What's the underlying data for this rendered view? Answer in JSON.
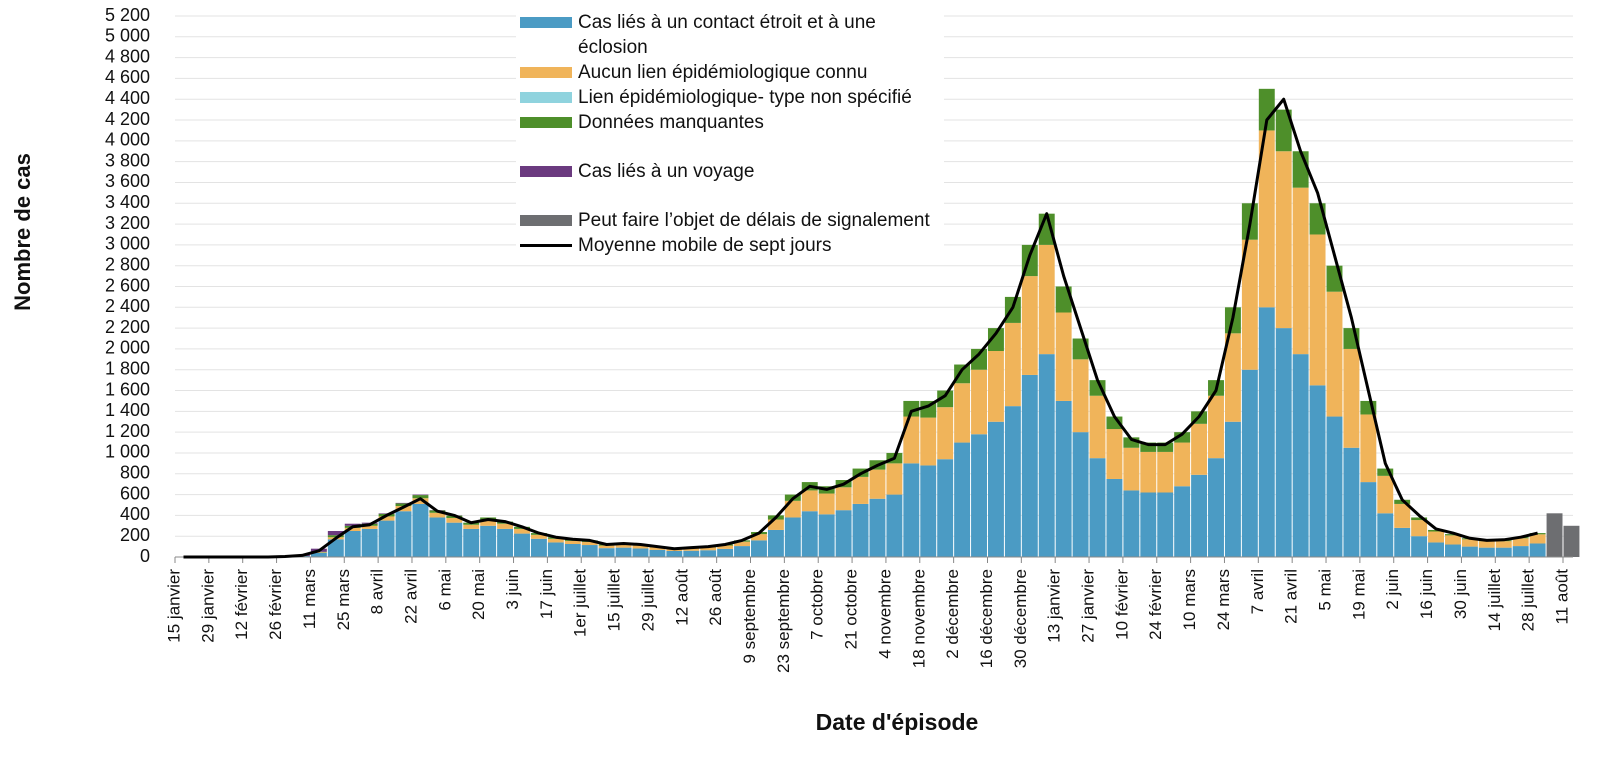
{
  "chart_data": {
    "type": "bar",
    "stacked": true,
    "y_label": "Nombre de cas",
    "x_label": "Date d'épisode",
    "categories": [
      "15 janvier",
      null,
      "29 janvier",
      null,
      "12 février",
      null,
      "26 février",
      null,
      "11 mars",
      null,
      "25 mars",
      null,
      "8 avril",
      null,
      "22 avril",
      null,
      "6 mai",
      null,
      "20 mai",
      null,
      "3 juin",
      null,
      "17 juin",
      null,
      "1er juillet",
      null,
      "15 juillet",
      null,
      "29 juillet",
      null,
      "12 août",
      null,
      "26 août",
      null,
      "9 septembre",
      null,
      "23 septembre",
      null,
      "7 octobre",
      null,
      "21 octobre",
      null,
      "4 novembre",
      null,
      "18 novembre",
      null,
      "2 décembre",
      null,
      "16 décembre",
      null,
      "30 décembre",
      null,
      "13 janvier",
      null,
      "27 janvier",
      null,
      "10 février",
      null,
      "24 février",
      null,
      "10 mars",
      null,
      "24 mars",
      null,
      "7 avril",
      null,
      "21 avril",
      null,
      "5 mai",
      null,
      "19 mai",
      null,
      "2 juin",
      null,
      "16 juin",
      null,
      "30 juin",
      null,
      "14 juillet",
      null,
      "28 juillet",
      null,
      "11 août"
    ],
    "series": [
      {
        "name": "Cas liés à un contact étroit et à une éclosion",
        "color": "#4b9bc4",
        "values": [
          0,
          0,
          0,
          0,
          0,
          2,
          3,
          10,
          40,
          170,
          250,
          270,
          350,
          440,
          510,
          380,
          330,
          270,
          300,
          270,
          225,
          175,
          140,
          125,
          115,
          85,
          90,
          82,
          68,
          58,
          60,
          65,
          78,
          105,
          160,
          260,
          380,
          440,
          410,
          450,
          510,
          560,
          600,
          900,
          880,
          940,
          1100,
          1180,
          1300,
          1450,
          1750,
          1950,
          1500,
          1200,
          950,
          750,
          640,
          620,
          620,
          680,
          790,
          950,
          1300,
          1800,
          2400,
          2200,
          1950,
          1650,
          1350,
          1050,
          720,
          420,
          280,
          200,
          140,
          120,
          100,
          90,
          90,
          105,
          130,
          0,
          0
        ]
      },
      {
        "name": "Aucun lien épidémiologique connu",
        "color": "#f0b45a",
        "values": [
          0,
          0,
          0,
          0,
          0,
          0,
          0,
          0,
          5,
          20,
          30,
          30,
          40,
          50,
          55,
          45,
          45,
          40,
          55,
          50,
          45,
          38,
          35,
          30,
          30,
          25,
          30,
          28,
          24,
          20,
          22,
          27,
          32,
          42,
          60,
          100,
          160,
          200,
          200,
          220,
          260,
          280,
          300,
          450,
          460,
          500,
          570,
          620,
          680,
          800,
          950,
          1050,
          850,
          700,
          600,
          480,
          410,
          390,
          390,
          420,
          490,
          600,
          850,
          1250,
          1700,
          1700,
          1600,
          1450,
          1200,
          950,
          650,
          360,
          230,
          155,
          105,
          88,
          70,
          62,
          62,
          75,
          88,
          0,
          0
        ]
      },
      {
        "name": "Lien épidémiologique- type non spécifié",
        "color": "#8fd3de",
        "values": [
          0,
          0,
          0,
          0,
          0,
          0,
          0,
          0,
          0,
          0,
          0,
          0,
          0,
          0,
          0,
          0,
          0,
          0,
          0,
          0,
          0,
          0,
          0,
          0,
          0,
          0,
          0,
          0,
          0,
          0,
          0,
          0,
          0,
          0,
          0,
          0,
          0,
          0,
          0,
          0,
          0,
          0,
          0,
          0,
          0,
          0,
          0,
          0,
          0,
          0,
          0,
          0,
          0,
          0,
          0,
          0,
          0,
          0,
          0,
          0,
          0,
          0,
          0,
          0,
          0,
          0,
          0,
          0,
          0,
          0,
          0,
          0,
          0,
          0,
          0,
          0,
          0,
          0,
          0,
          0,
          0,
          0,
          0
        ]
      },
      {
        "name": "Données manquantes",
        "color": "#4e8f2a",
        "values": [
          0,
          0,
          0,
          0,
          0,
          0,
          0,
          0,
          5,
          20,
          20,
          20,
          25,
          25,
          30,
          22,
          23,
          20,
          25,
          20,
          20,
          17,
          15,
          15,
          15,
          10,
          10,
          10,
          8,
          7,
          8,
          8,
          10,
          13,
          20,
          40,
          60,
          80,
          70,
          70,
          80,
          90,
          100,
          150,
          160,
          160,
          180,
          200,
          220,
          250,
          300,
          300,
          250,
          200,
          150,
          120,
          100,
          90,
          90,
          100,
          120,
          150,
          250,
          350,
          400,
          400,
          350,
          300,
          250,
          200,
          130,
          70,
          40,
          25,
          15,
          12,
          10,
          8,
          8,
          10,
          12,
          0,
          0
        ]
      },
      {
        "name": "Cas liés à un voyage",
        "color": "#6b3a7f",
        "values": [
          0,
          0,
          0,
          0,
          0,
          0,
          2,
          10,
          30,
          40,
          20,
          10,
          5,
          5,
          5,
          3,
          2,
          0,
          0,
          0,
          0,
          0,
          0,
          0,
          0,
          0,
          0,
          0,
          0,
          0,
          0,
          0,
          0,
          0,
          0,
          0,
          0,
          0,
          0,
          0,
          0,
          0,
          0,
          0,
          0,
          0,
          0,
          0,
          0,
          0,
          0,
          0,
          0,
          0,
          0,
          0,
          0,
          0,
          0,
          0,
          0,
          0,
          0,
          0,
          0,
          0,
          0,
          0,
          0,
          0,
          0,
          0,
          0,
          0,
          0,
          0,
          0,
          0,
          0,
          0,
          0,
          0,
          0
        ]
      },
      {
        "name": "Peut faire l’objet de délais de signalement",
        "color": "#6d6e71",
        "values": [
          0,
          0,
          0,
          0,
          0,
          0,
          0,
          0,
          0,
          0,
          0,
          0,
          0,
          0,
          0,
          0,
          0,
          0,
          0,
          0,
          0,
          0,
          0,
          0,
          0,
          0,
          0,
          0,
          0,
          0,
          0,
          0,
          0,
          0,
          0,
          0,
          0,
          0,
          0,
          0,
          0,
          0,
          0,
          0,
          0,
          0,
          0,
          0,
          0,
          0,
          0,
          0,
          0,
          0,
          0,
          0,
          0,
          0,
          0,
          0,
          0,
          0,
          0,
          0,
          0,
          0,
          0,
          0,
          0,
          0,
          0,
          0,
          0,
          0,
          0,
          0,
          0,
          0,
          0,
          0,
          0,
          420,
          300
        ]
      }
    ],
    "line": {
      "name": "Moyenne mobile de sept jours",
      "color": "#000000",
      "values": [
        0,
        0,
        0,
        0,
        0,
        0,
        5,
        15,
        60,
        180,
        290,
        310,
        400,
        480,
        560,
        440,
        400,
        330,
        360,
        340,
        290,
        230,
        190,
        170,
        160,
        120,
        130,
        120,
        100,
        80,
        90,
        100,
        120,
        160,
        230,
        380,
        560,
        680,
        650,
        700,
        800,
        880,
        950,
        1400,
        1450,
        1550,
        1800,
        1950,
        2150,
        2400,
        2900,
        3300,
        2700,
        2200,
        1700,
        1350,
        1130,
        1080,
        1080,
        1180,
        1350,
        1600,
        2300,
        3200,
        4200,
        4400,
        3900,
        3500,
        2900,
        2300,
        1600,
        900,
        550,
        400,
        270,
        230,
        180,
        160,
        165,
        190,
        230,
        null,
        null
      ]
    },
    "ylim": [
      0,
      5200
    ],
    "yticks": [
      0,
      200,
      400,
      600,
      800,
      {
        "value": 1000,
        "label": "1 000"
      },
      {
        "value": 1200,
        "label": "1 200"
      },
      {
        "value": 1400,
        "label": "1 400"
      },
      {
        "value": 1600,
        "label": "1 600"
      },
      {
        "value": 1800,
        "label": "1 800"
      },
      {
        "value": 2000,
        "label": "2 000"
      },
      {
        "value": 2200,
        "label": "2 200"
      },
      {
        "value": 2400,
        "label": "2 400"
      },
      {
        "value": 2600,
        "label": "2 600"
      },
      {
        "value": 2800,
        "label": "2 800"
      },
      {
        "value": 3000,
        "label": "3 000"
      },
      {
        "value": 3200,
        "label": "3 200"
      },
      {
        "value": 3400,
        "label": "3 400"
      },
      {
        "value": 3600,
        "label": "3 600"
      },
      {
        "value": 3800,
        "label": "3 800"
      },
      {
        "value": 4000,
        "label": "4 000"
      },
      {
        "value": 4200,
        "label": "4 200"
      },
      {
        "value": 4400,
        "label": "4 400"
      },
      {
        "value": 4600,
        "label": "4 600"
      },
      {
        "value": 4800,
        "label": "4 800"
      },
      {
        "value": 5000,
        "label": "5 000"
      },
      {
        "value": 5200,
        "label": "5 200"
      }
    ],
    "grid": true
  }
}
